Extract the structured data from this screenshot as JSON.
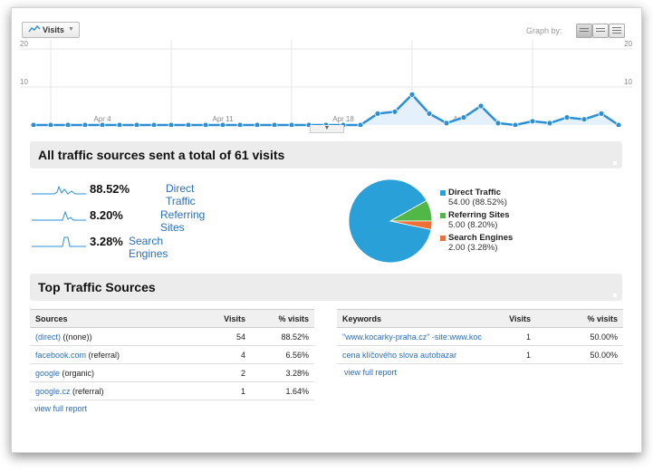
{
  "chart_data": {
    "type": "line",
    "title": "",
    "ylabel": "",
    "ylim": [
      0,
      20
    ],
    "y_ticks": [
      "20",
      "10"
    ],
    "x_tick_labels": [
      "Apr 4",
      "Apr 11",
      "Apr 18",
      "Apr 25"
    ],
    "series": [
      {
        "name": "Visits",
        "values": [
          0,
          0,
          0,
          0,
          0,
          0,
          0,
          0,
          0,
          0,
          0,
          0,
          0,
          0,
          0,
          0,
          0,
          0,
          0,
          0,
          3,
          3.5,
          8,
          3,
          0.5,
          2,
          5,
          0.5,
          0,
          1,
          0.5,
          2,
          1.5,
          3,
          0
        ]
      }
    ],
    "colors": {
      "line": "#2b8fd6",
      "fill": "#e4f0fb"
    }
  },
  "toolbar": {
    "tab_label": "Visits",
    "graph_by_label": "Graph by:"
  },
  "summary": {
    "title": "All traffic sources sent a total of 61 visits",
    "rows": [
      {
        "pct": "88.52%",
        "name": "Direct Traffic"
      },
      {
        "pct": "8.20%",
        "name": "Referring Sites"
      },
      {
        "pct": "3.28%",
        "name": "Search Engines"
      }
    ]
  },
  "pie": {
    "type": "pie",
    "slices": [
      {
        "label": "Direct Traffic",
        "value": 54.0,
        "text": "54.00 (88.52%)",
        "color": "#2aa0d8"
      },
      {
        "label": "Referring Sites",
        "value": 5.0,
        "text": "5.00 (8.20%)",
        "color": "#51b848"
      },
      {
        "label": "Search Engines",
        "value": 2.0,
        "text": "2.00 (3.28%)",
        "color": "#ee6e35"
      }
    ]
  },
  "top_sources": {
    "title": "Top Traffic Sources",
    "sources_table": {
      "headers": [
        "Sources",
        "Visits",
        "% visits"
      ],
      "rows": [
        {
          "link": "(direct)",
          "medium": " ((none))",
          "visits": "54",
          "pct": "88.52%"
        },
        {
          "link": "facebook.com",
          "medium": " (referral)",
          "visits": "4",
          "pct": "6.56%"
        },
        {
          "link": "google",
          "medium": " (organic)",
          "visits": "2",
          "pct": "3.28%"
        },
        {
          "link": "google.cz",
          "medium": " (referral)",
          "visits": "1",
          "pct": "1.64%"
        }
      ],
      "view_full": "view full report"
    },
    "keywords_table": {
      "headers": [
        "Keywords",
        "Visits",
        "% visits"
      ],
      "rows": [
        {
          "link": "\"www.kocarky-praha.cz\" -site:www.koc",
          "visits": "1",
          "pct": "50.00%"
        },
        {
          "link": "cena klíčového slova autobazar",
          "visits": "1",
          "pct": "50.00%"
        }
      ],
      "view_full": "view full report"
    }
  }
}
